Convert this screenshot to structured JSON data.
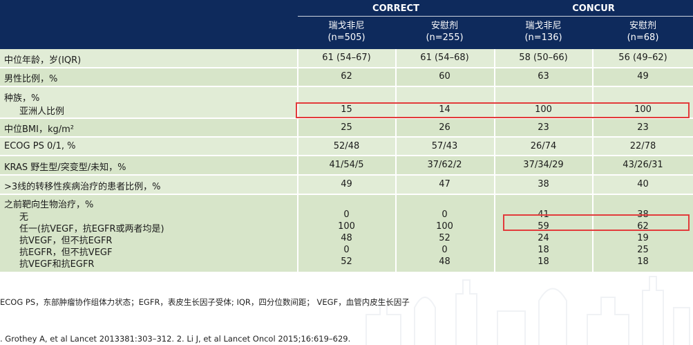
{
  "header": {
    "studies": [
      {
        "name": "CORRECT"
      },
      {
        "name": "CONCUR"
      }
    ],
    "arms": [
      {
        "drug": "瑞戈非尼",
        "n": "(n=505)"
      },
      {
        "drug": "安慰剂",
        "n": "(n=255)"
      },
      {
        "drug": "瑞戈非尼",
        "n": "(n=136)"
      },
      {
        "drug": "安慰剂",
        "n": "(n=68)"
      }
    ]
  },
  "rows": [
    {
      "label": "中位年龄，岁(IQR)",
      "values": [
        "61 (54–67)",
        "61 (54–68)",
        "58 (50–66)",
        "56 (49–62)"
      ]
    },
    {
      "label": "男性比例，%",
      "values": [
        "62",
        "60",
        "63",
        "49"
      ]
    },
    {
      "label": "种族，%",
      "sublabel": "亚洲人比例",
      "values": [
        "15",
        "14",
        "100",
        "100"
      ]
    },
    {
      "label": "中位BMI，kg/m²",
      "values": [
        "25",
        "26",
        "23",
        "23"
      ]
    },
    {
      "label": "ECOG PS 0/1, %",
      "values": [
        "52/48",
        "57/43",
        "26/74",
        "22/78"
      ]
    },
    {
      "label": "KRAS 野生型/突变型/未知，%",
      "values": [
        "41/54/5",
        "37/62/2",
        "37/34/29",
        "43/26/31"
      ]
    },
    {
      "label": ">3线的转移性疾病治疗的患者比例，%",
      "values": [
        "49",
        "47",
        "38",
        "40"
      ]
    },
    {
      "label": "之前靶向生物治疗，%",
      "subrows": [
        {
          "label": "无",
          "values": [
            "0",
            "0",
            "41",
            "38"
          ]
        },
        {
          "label": "任一(抗VEGF，抗EGFR或两者均是)",
          "values": [
            "100",
            "100",
            "59",
            "62"
          ]
        },
        {
          "label": "抗VEGF，但不抗EGFR",
          "values": [
            "48",
            "52",
            "24",
            "19"
          ]
        },
        {
          "label": "抗EGFR，但不抗VEGF",
          "values": [
            "0",
            "0",
            "18",
            "25"
          ]
        },
        {
          "label": "抗VEGF和抗EGFR",
          "values": [
            "52",
            "48",
            "18",
            "18"
          ]
        }
      ]
    }
  ],
  "footnotes": {
    "abbrev": "ECOG PS，东部肿瘤协作组体力状态；EGFR，表皮生长因子受体; IQR，四分位数间距；  VEGF，血管内皮生长因子",
    "refs": ". Grothey A, et al Lancet 2013381:303–312. 2. Li J, et al Lancet Oncol 2015;16:619–629."
  },
  "highlight_color": "#e23b3b",
  "header_color": "#0e2a5c"
}
